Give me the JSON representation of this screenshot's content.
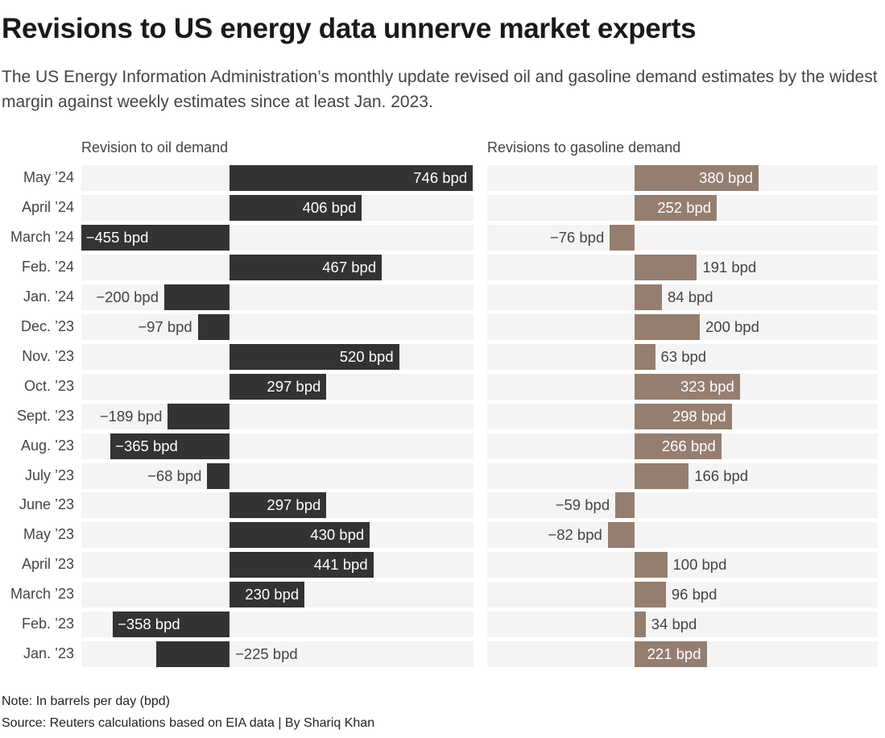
{
  "title": "Revisions to US energy data unnerve market experts",
  "subtitle": "The US Energy Information Administration's monthly update revised oil and gasoline demand estimates by the widest margin against weekly estimates since at least Jan. 2023.",
  "note": "Note: In barrels per day (bpd)",
  "source": "Source: Reuters calculations based on EIA data | By Shariq Khan",
  "chart_data": {
    "type": "bar",
    "orientation": "horizontal",
    "unit": "bpd",
    "categories": [
      "May '24",
      "April '24",
      "March '24",
      "Feb. '24",
      "Jan. '24",
      "Dec. '23",
      "Nov. '23",
      "Oct. '23",
      "Sept. '23",
      "Aug. '23",
      "July '23",
      "June '23",
      "May '23",
      "April '23",
      "March '23",
      "Feb. '23",
      "Jan. '23"
    ],
    "series": [
      {
        "name": "Revision to oil demand",
        "color": "#333333",
        "values": [
          746,
          406,
          -455,
          467,
          -200,
          -97,
          520,
          297,
          -189,
          -365,
          -68,
          297,
          430,
          441,
          230,
          -358,
          -225
        ]
      },
      {
        "name": "Revisions to gasoline demand",
        "color": "#957e70",
        "values": [
          380,
          252,
          -76,
          191,
          84,
          200,
          63,
          323,
          298,
          266,
          166,
          -59,
          -82,
          100,
          96,
          34,
          221
        ]
      }
    ]
  }
}
